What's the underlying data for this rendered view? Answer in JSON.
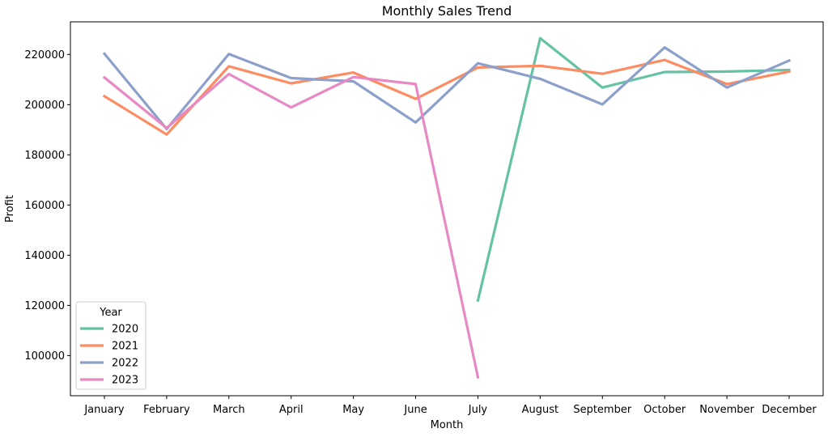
{
  "chart_data": {
    "type": "line",
    "title": "Monthly Sales Trend",
    "xlabel": "Month",
    "ylabel": "Profit",
    "categories": [
      "January",
      "February",
      "March",
      "April",
      "May",
      "June",
      "July",
      "August",
      "September",
      "October",
      "November",
      "December"
    ],
    "yticks": [
      100000,
      120000,
      140000,
      160000,
      180000,
      200000,
      220000
    ],
    "ylim": [
      84000,
      233000
    ],
    "grid": false,
    "legend": {
      "title": "Year",
      "placement": "lower-left"
    },
    "series": [
      {
        "name": "2020",
        "color": "#66c2a5",
        "values": [
          null,
          null,
          null,
          null,
          null,
          null,
          122000,
          226500,
          206800,
          213000,
          213200,
          213800
        ]
      },
      {
        "name": "2021",
        "color": "#fc8d62",
        "values": [
          203400,
          188100,
          215300,
          208500,
          212800,
          202300,
          214800,
          215500,
          212300,
          217800,
          208200,
          213200
        ]
      },
      {
        "name": "2022",
        "color": "#8da0cb",
        "values": [
          220300,
          190300,
          220200,
          210600,
          209300,
          192900,
          216500,
          210300,
          200100,
          222800,
          206800,
          217600
        ]
      },
      {
        "name": "2023",
        "color": "#e78ac3",
        "values": [
          210800,
          190700,
          212200,
          198900,
          211000,
          208200,
          91400,
          null,
          null,
          null,
          null,
          null
        ]
      }
    ]
  }
}
